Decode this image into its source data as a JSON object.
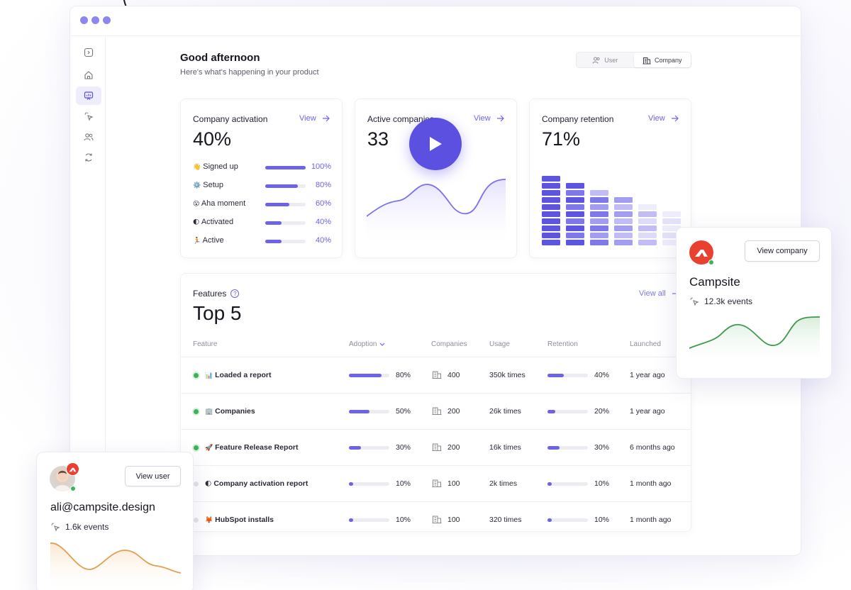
{
  "header": {
    "greeting": "Good afternoon",
    "subtitle": "Here's what's happening in your product",
    "toggle": {
      "user_label": "User",
      "company_label": "Company",
      "selected": "Company"
    }
  },
  "cards": {
    "activation": {
      "title": "Company activation",
      "view": "View",
      "value": "40%",
      "steps": [
        {
          "emoji": "👋",
          "label": "Signed up",
          "percent": 100,
          "percent_label": "100%"
        },
        {
          "emoji": "⚙️",
          "label": "Setup",
          "percent": 80,
          "percent_label": "80%"
        },
        {
          "emoji": "😮",
          "label": "Aha moment",
          "percent": 60,
          "percent_label": "60%"
        },
        {
          "emoji": "🌓",
          "label": "Activated",
          "percent": 40,
          "percent_label": "40%"
        },
        {
          "emoji": "🏃",
          "label": "Active",
          "percent": 40,
          "percent_label": "40%"
        }
      ]
    },
    "active_companies": {
      "title": "Active companies",
      "view": "View",
      "value": "33"
    },
    "retention": {
      "title": "Company retention",
      "view": "View",
      "value": "71%",
      "column_fills": [
        10,
        9,
        8,
        7,
        6,
        5
      ]
    }
  },
  "features": {
    "label": "Features",
    "title": "Top 5",
    "view_all": "View all",
    "columns": [
      "Feature",
      "Adoption",
      "Companies",
      "Usage",
      "Retention",
      "Launched"
    ],
    "rows": [
      {
        "active": true,
        "emoji": "📊",
        "name": "Loaded a report",
        "adoption": 80,
        "adoption_label": "80%",
        "companies": "400",
        "usage": "350k times",
        "retention": 40,
        "retention_label": "40%",
        "launched": "1 year ago"
      },
      {
        "active": true,
        "emoji": "🏢",
        "name": "Companies",
        "adoption": 50,
        "adoption_label": "50%",
        "companies": "200",
        "usage": "26k times",
        "retention": 20,
        "retention_label": "20%",
        "launched": "1 year ago"
      },
      {
        "active": true,
        "emoji": "🚀",
        "name": "Feature Release Report",
        "adoption": 30,
        "adoption_label": "30%",
        "companies": "200",
        "usage": "16k times",
        "retention": 30,
        "retention_label": "30%",
        "launched": "6 months ago"
      },
      {
        "active": false,
        "emoji": "🌓",
        "name": "Company activation report",
        "adoption": 10,
        "adoption_label": "10%",
        "companies": "100",
        "usage": "2k times",
        "retention": 10,
        "retention_label": "10%",
        "launched": "1 month ago"
      },
      {
        "active": false,
        "emoji": "🦊",
        "name": "HubSpot installs",
        "adoption": 10,
        "adoption_label": "10%",
        "companies": "100",
        "usage": "320 times",
        "retention": 10,
        "retention_label": "10%",
        "launched": "1 month ago"
      }
    ]
  },
  "company_popup": {
    "button": "View company",
    "name": "Campsite",
    "events": "12.3k events",
    "accent": "#3f9a4c"
  },
  "user_popup": {
    "button": "View user",
    "email": "ali@campsite.design",
    "events": "1.6k events",
    "accent": "#e0a050"
  },
  "colors": {
    "accent": "#6c63e8",
    "brand_red": "#e8412f",
    "online": "#3eb15b"
  }
}
